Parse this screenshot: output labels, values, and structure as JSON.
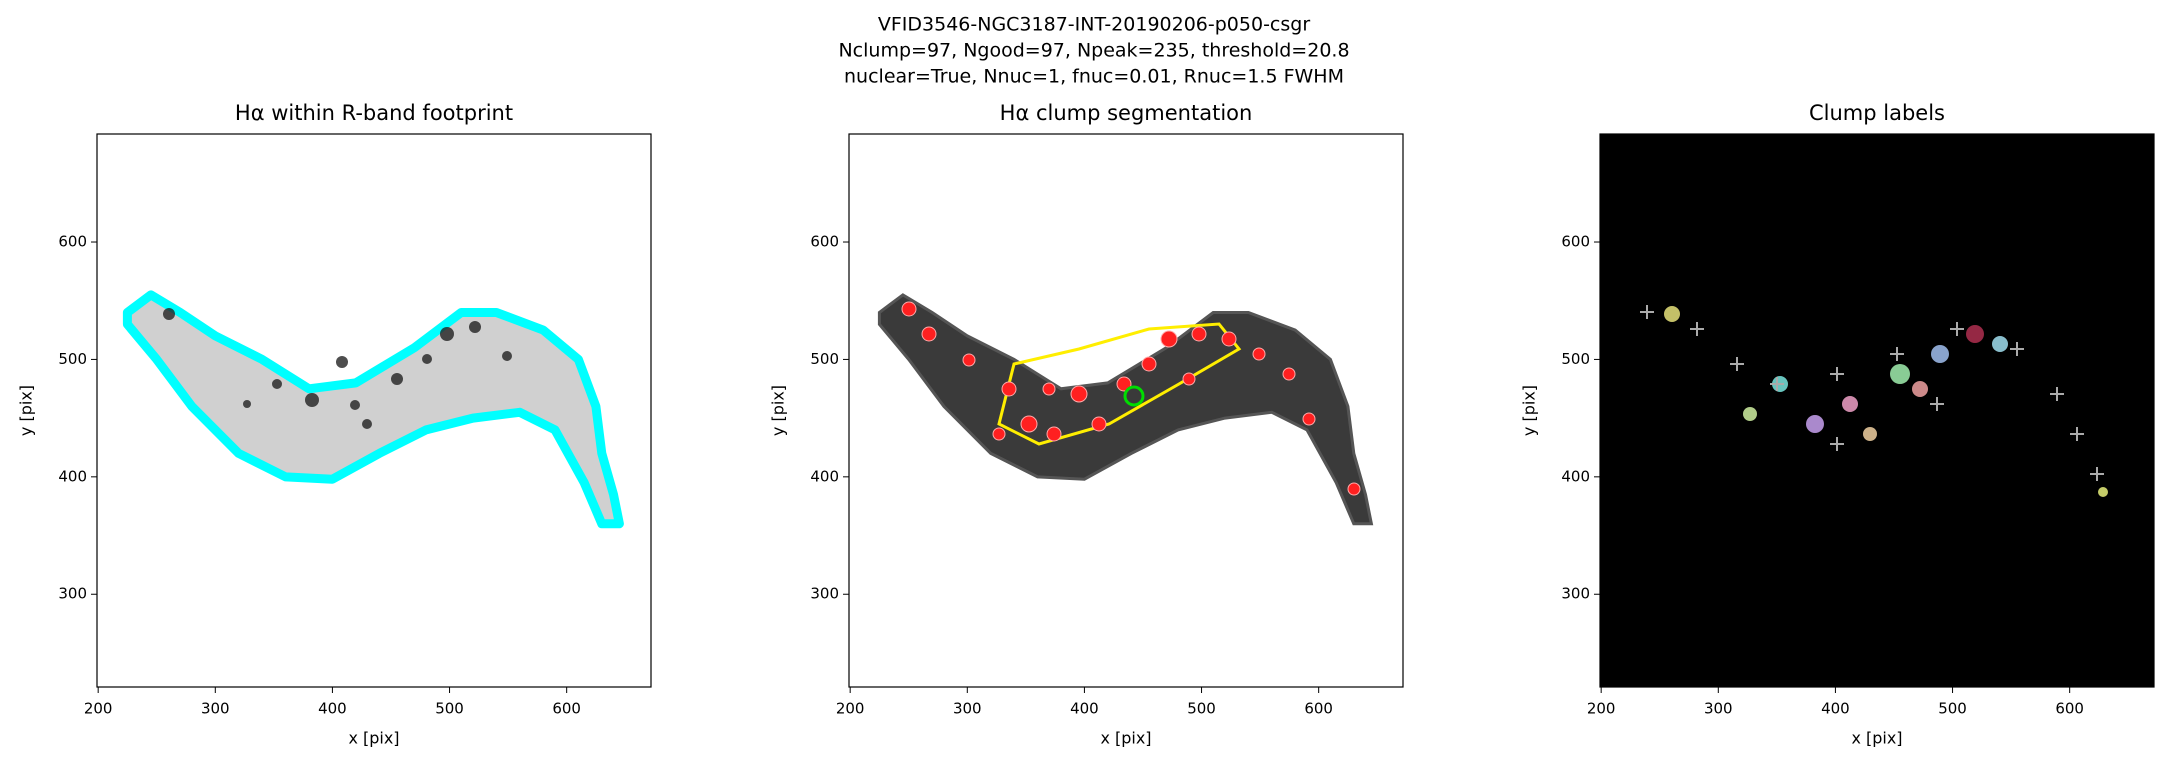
{
  "suptitle": [
    "VFID3546-NGC3187-INT-20190206-p050-csgr",
    "Nclump=97, Ngood=97, Npeak=235, threshold=20.8",
    "nuclear=True, Nnuc=1, fnuc=0.01, Rnuc=1.5 FWHM"
  ],
  "chart_data": [
    {
      "type": "image",
      "title": "Hα within R-band footprint",
      "xlabel": "x [pix]",
      "ylabel": "y [pix]",
      "xlim": [
        199,
        672
      ],
      "ylim": [
        221,
        692
      ],
      "xticks": [
        200,
        300,
        400,
        500,
        600
      ],
      "yticks": [
        300,
        400,
        500,
        600
      ]
    },
    {
      "type": "image",
      "title": "Hα clump segmentation",
      "xlabel": "x [pix]",
      "ylabel": "y [pix]",
      "xlim": [
        199,
        672
      ],
      "ylim": [
        221,
        692
      ],
      "xticks": [
        200,
        300,
        400,
        500,
        600
      ],
      "yticks": [
        300,
        400,
        500,
        600
      ]
    },
    {
      "type": "image",
      "title": "Clump labels",
      "xlabel": "x [pix]",
      "ylabel": "y [pix]",
      "xlim": [
        199,
        672
      ],
      "ylim": [
        221,
        692
      ],
      "xticks": [
        200,
        300,
        400,
        500,
        600
      ],
      "yticks": [
        300,
        400,
        500,
        600
      ]
    }
  ]
}
